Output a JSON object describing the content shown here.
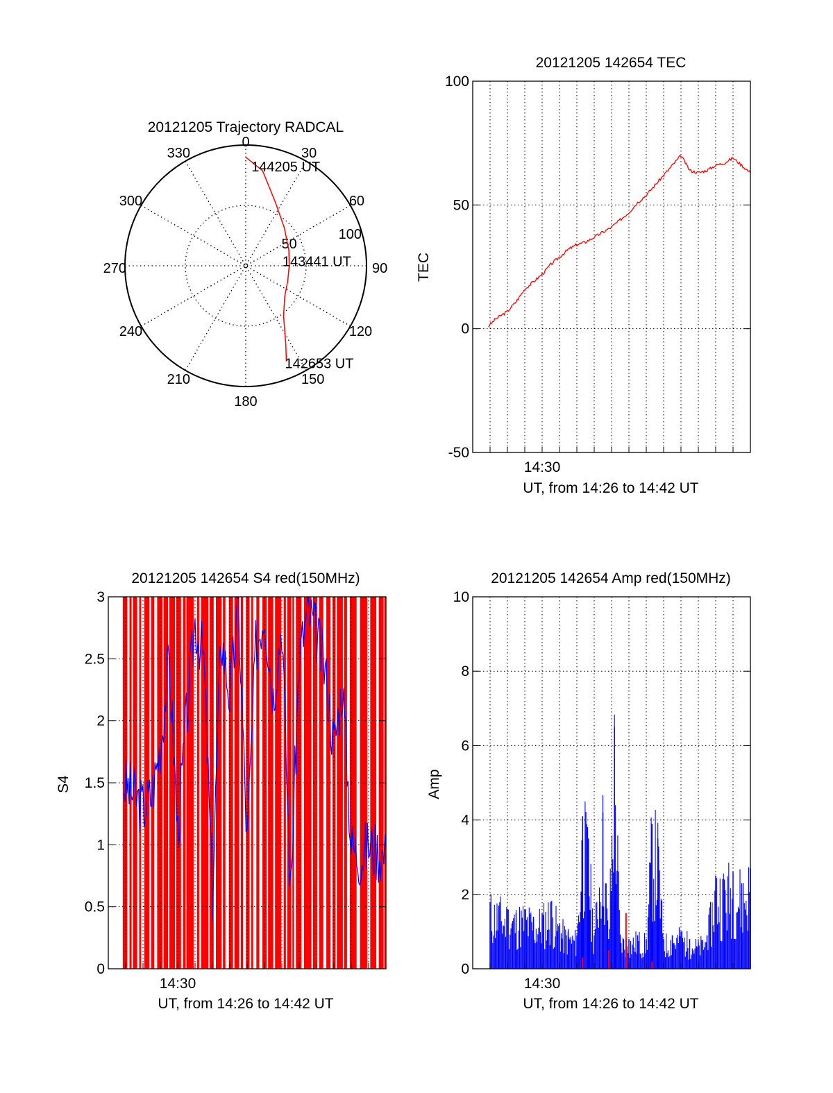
{
  "chart_data": [
    {
      "id": "trajectory",
      "type": "polar",
      "title": "20121205 Trajectory RADCAL",
      "azimuth_labels": [
        "0",
        "30",
        "60",
        "90",
        "120",
        "150",
        "180",
        "210",
        "240",
        "270",
        "300",
        "330"
      ],
      "radius_labels": [
        "50",
        "100"
      ],
      "rlim": [
        0,
        100
      ],
      "grid": true,
      "series": [
        {
          "color": "#ff0000",
          "points": [
            {
              "az": 0,
              "r": 90
            },
            {
              "az": 10,
              "r": 80
            },
            {
              "az": 25,
              "r": 58
            },
            {
              "az": 45,
              "r": 45
            },
            {
              "az": 70,
              "r": 38
            },
            {
              "az": 90,
              "r": 36
            },
            {
              "az": 110,
              "r": 37
            },
            {
              "az": 128,
              "r": 41
            },
            {
              "az": 143,
              "r": 52
            },
            {
              "az": 153,
              "r": 73
            },
            {
              "az": 157,
              "r": 86
            }
          ]
        }
      ],
      "annotations": [
        {
          "text": "144205 UT",
          "az": 4,
          "r": 84
        },
        {
          "text": "143441 UT",
          "az": 80,
          "r": 32
        },
        {
          "text": "142653 UT",
          "az": 157,
          "r": 86
        }
      ]
    },
    {
      "id": "tec",
      "type": "line",
      "title": "20121205 142654 TEC",
      "xlabel": "UT, from 14:26 to 14:42 UT",
      "ylabel": "TEC",
      "xlim": [
        "14:26:00",
        "14:42:00"
      ],
      "ylim": [
        -50,
        100
      ],
      "yticks": [
        "-50",
        "0",
        "50",
        "100"
      ],
      "xticks": [
        "14:30"
      ],
      "grid": true,
      "series": [
        {
          "color": "#ff0000",
          "x": [
            "14:26:54",
            "14:27:20",
            "14:28:00",
            "14:28:30",
            "14:29:00",
            "14:29:30",
            "14:30:00",
            "14:30:30",
            "14:31:00",
            "14:31:30",
            "14:32:00",
            "14:32:30",
            "14:33:00",
            "14:33:30",
            "14:34:00",
            "14:34:30",
            "14:35:00",
            "14:35:30",
            "14:36:00",
            "14:36:30",
            "14:37:00",
            "14:37:30",
            "14:38:00",
            "14:38:30",
            "14:39:00",
            "14:39:30",
            "14:40:00",
            "14:40:30",
            "14:41:00",
            "14:41:30",
            "14:42:00"
          ],
          "y": [
            1,
            4,
            7,
            11,
            16,
            19,
            22,
            26,
            29,
            32,
            34,
            35,
            37,
            39,
            41,
            44,
            47,
            51,
            54,
            58,
            62,
            66,
            70,
            64,
            63,
            64,
            66,
            67,
            69,
            66,
            63
          ]
        }
      ]
    },
    {
      "id": "s4",
      "type": "line",
      "title": "20121205 142654 S4 red(150MHz)",
      "xlabel": "UT, from 14:26 to 14:42 UT",
      "ylabel": "S4",
      "xlim": [
        "14:26:00",
        "14:42:00"
      ],
      "ylim": [
        0,
        3
      ],
      "yticks": [
        "0",
        "0.5",
        "1",
        "1.5",
        "2",
        "2.5",
        "3"
      ],
      "xticks": [
        "14:30"
      ],
      "grid": true,
      "series": [
        {
          "color": "#0000ff",
          "x": [
            "14:26:54",
            "14:27:30",
            "14:28:00",
            "14:28:30",
            "14:29:00",
            "14:29:30",
            "14:30:00",
            "14:30:30",
            "14:31:00",
            "14:31:30",
            "14:32:00",
            "14:32:30",
            "14:33:00",
            "14:33:30",
            "14:34:00",
            "14:34:30",
            "14:35:00",
            "14:35:30",
            "14:36:00",
            "14:36:30",
            "14:37:00",
            "14:37:30",
            "14:38:00",
            "14:38:30",
            "14:39:00",
            "14:39:30",
            "14:40:00",
            "14:40:30",
            "14:41:00",
            "14:41:30",
            "14:42:00"
          ],
          "y": [
            1.5,
            1.4,
            1.3,
            1.4,
            1.8,
            2.5,
            1.1,
            2.0,
            2.8,
            2.5,
            0.6,
            2.7,
            2.2,
            2.9,
            1.0,
            2.6,
            2.9,
            2.2,
            2.8,
            0.6,
            2.5,
            2.9,
            2.7,
            2.4,
            1.8,
            2.3,
            1.0,
            0.9,
            1.0,
            0.95,
            0.9
          ]
        }
      ]
    },
    {
      "id": "amp",
      "type": "line",
      "title": "20121205 142654 Amp red(150MHz)",
      "xlabel": "UT, from 14:26 to 14:42 UT",
      "ylabel": "Amp",
      "xlim": [
        "14:26:00",
        "14:42:00"
      ],
      "ylim": [
        0,
        10
      ],
      "yticks": [
        "0",
        "2",
        "4",
        "6",
        "8",
        "10"
      ],
      "xticks": [
        "14:30"
      ],
      "grid": true,
      "series": [
        {
          "color": "#0000ff",
          "x": [
            "14:27:00",
            "14:27:30",
            "14:28:00",
            "14:28:30",
            "14:29:00",
            "14:29:30",
            "14:30:00",
            "14:30:30",
            "14:31:00",
            "14:31:30",
            "14:32:00",
            "14:32:20",
            "14:32:40",
            "14:33:00",
            "14:33:30",
            "14:33:50",
            "14:34:10",
            "14:34:30",
            "14:35:00",
            "14:35:30",
            "14:36:00",
            "14:36:20",
            "14:36:40",
            "14:37:00",
            "14:37:30",
            "14:38:00",
            "14:38:30",
            "14:39:00",
            "14:39:30",
            "14:40:00",
            "14:40:30",
            "14:41:00",
            "14:41:30",
            "14:42:00"
          ],
          "y": [
            1.8,
            1.7,
            1.6,
            1.5,
            1.6,
            1.4,
            1.5,
            1.8,
            1.2,
            1.0,
            0.9,
            4.1,
            3.5,
            0.9,
            4.2,
            0.8,
            6.5,
            0.9,
            0.8,
            0.9,
            0.8,
            3.9,
            3.5,
            0.8,
            0.9,
            1.0,
            0.8,
            0.7,
            0.9,
            2.5,
            2.4,
            2.6,
            2.3,
            2.7
          ]
        },
        {
          "color": "#ff0000",
          "x": [
            "14:32:20",
            "14:33:50",
            "14:34:50",
            "14:36:20"
          ],
          "y": [
            0.3,
            0.5,
            1.5,
            0.2
          ]
        }
      ]
    }
  ]
}
